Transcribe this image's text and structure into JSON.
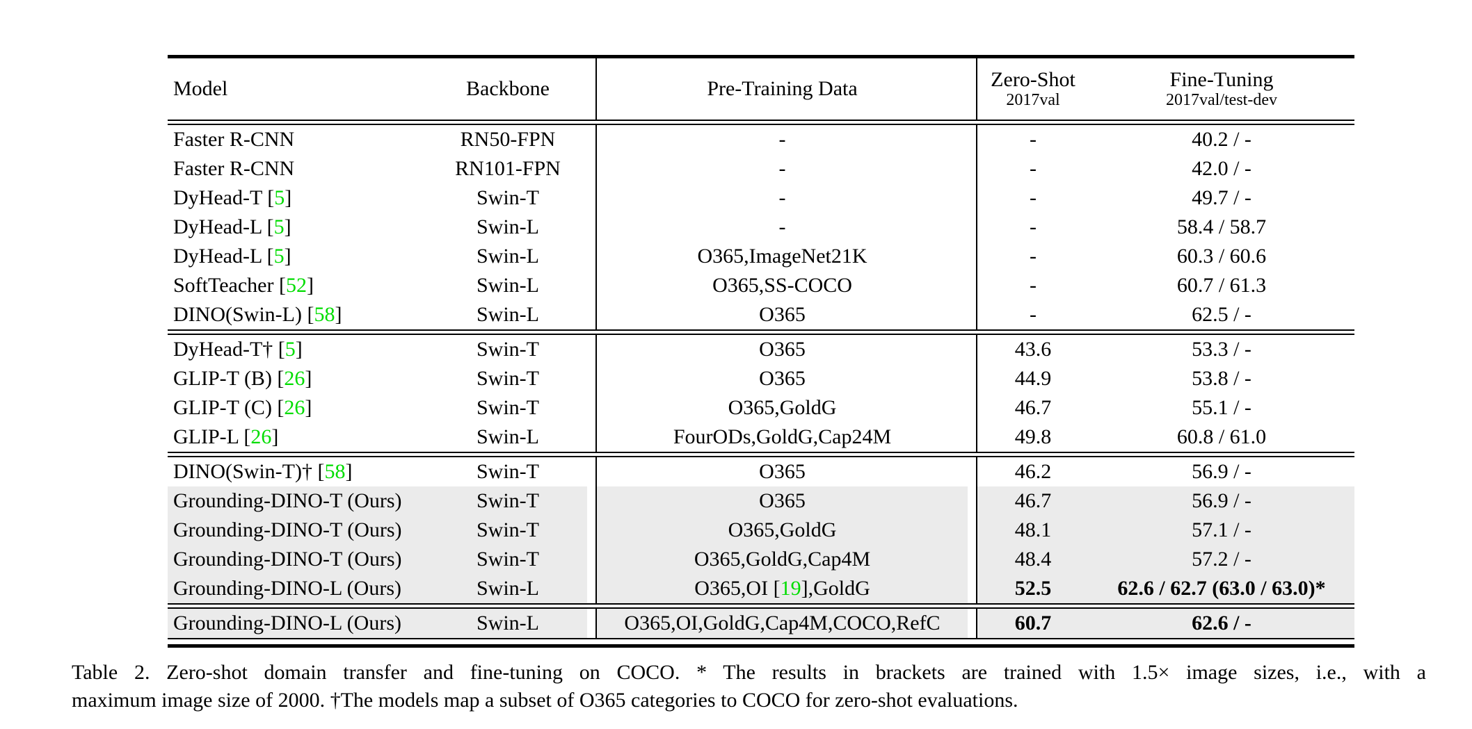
{
  "colors": {
    "citation_green": "#00dd00",
    "row_gray": "#ebebeb",
    "rule_black": "#000000"
  },
  "table": {
    "headers": {
      "model": "Model",
      "backbone": "Backbone",
      "pretrain": "Pre-Training Data",
      "zeroshot_title": "Zero-Shot",
      "zeroshot_sub": "2017val",
      "finetune_title": "Fine-Tuning",
      "finetune_sub": "2017val/test-dev"
    },
    "sections": [
      {
        "rows": [
          {
            "model": [
              {
                "t": "Faster R-CNN"
              }
            ],
            "backbone": "RN50-FPN",
            "pretrain": [
              {
                "t": "-"
              }
            ],
            "zs": "-",
            "ft": "40.2 / -",
            "gray": false,
            "bold": false
          },
          {
            "model": [
              {
                "t": "Faster R-CNN"
              }
            ],
            "backbone": "RN101-FPN",
            "pretrain": [
              {
                "t": "-"
              }
            ],
            "zs": "-",
            "ft": "42.0 / -",
            "gray": false,
            "bold": false
          },
          {
            "model": [
              {
                "t": "DyHead-T ["
              },
              {
                "t": "5",
                "green": true
              },
              {
                "t": "]"
              }
            ],
            "backbone": "Swin-T",
            "pretrain": [
              {
                "t": "-"
              }
            ],
            "zs": "-",
            "ft": "49.7 / -",
            "gray": false,
            "bold": false
          },
          {
            "model": [
              {
                "t": "DyHead-L ["
              },
              {
                "t": "5",
                "green": true
              },
              {
                "t": "]"
              }
            ],
            "backbone": "Swin-L",
            "pretrain": [
              {
                "t": "-"
              }
            ],
            "zs": "-",
            "ft": "58.4 / 58.7",
            "gray": false,
            "bold": false
          },
          {
            "model": [
              {
                "t": "DyHead-L ["
              },
              {
                "t": "5",
                "green": true
              },
              {
                "t": "]"
              }
            ],
            "backbone": "Swin-L",
            "pretrain": [
              {
                "t": "O365,ImageNet21K"
              }
            ],
            "zs": "-",
            "ft": "60.3 / 60.6",
            "gray": false,
            "bold": false
          },
          {
            "model": [
              {
                "t": "SoftTeacher ["
              },
              {
                "t": "52",
                "green": true
              },
              {
                "t": "]"
              }
            ],
            "backbone": "Swin-L",
            "pretrain": [
              {
                "t": "O365,SS-COCO"
              }
            ],
            "zs": "-",
            "ft": "60.7 / 61.3",
            "gray": false,
            "bold": false
          },
          {
            "model": [
              {
                "t": "DINO(Swin-L) ["
              },
              {
                "t": "58",
                "green": true
              },
              {
                "t": "]"
              }
            ],
            "backbone": "Swin-L",
            "pretrain": [
              {
                "t": "O365"
              }
            ],
            "zs": "-",
            "ft": "62.5 / -",
            "gray": false,
            "bold": false
          }
        ]
      },
      {
        "rows": [
          {
            "model": [
              {
                "t": "DyHead-T† ["
              },
              {
                "t": "5",
                "green": true
              },
              {
                "t": "]"
              }
            ],
            "backbone": "Swin-T",
            "pretrain": [
              {
                "t": "O365"
              }
            ],
            "zs": "43.6",
            "ft": "53.3 / -",
            "gray": false,
            "bold": false
          },
          {
            "model": [
              {
                "t": "GLIP-T (B) ["
              },
              {
                "t": "26",
                "green": true
              },
              {
                "t": "]"
              }
            ],
            "backbone": "Swin-T",
            "pretrain": [
              {
                "t": "O365"
              }
            ],
            "zs": "44.9",
            "ft": "53.8 / -",
            "gray": false,
            "bold": false
          },
          {
            "model": [
              {
                "t": "GLIP-T (C) ["
              },
              {
                "t": "26",
                "green": true
              },
              {
                "t": "]"
              }
            ],
            "backbone": "Swin-T",
            "pretrain": [
              {
                "t": "O365,GoldG"
              }
            ],
            "zs": "46.7",
            "ft": "55.1 / -",
            "gray": false,
            "bold": false
          },
          {
            "model": [
              {
                "t": "GLIP-L ["
              },
              {
                "t": "26",
                "green": true
              },
              {
                "t": "]"
              }
            ],
            "backbone": "Swin-L",
            "pretrain": [
              {
                "t": "FourODs,GoldG,Cap24M"
              }
            ],
            "zs": "49.8",
            "ft": "60.8 / 61.0",
            "gray": false,
            "bold": false
          }
        ]
      },
      {
        "rows": [
          {
            "model": [
              {
                "t": "DINO(Swin-T)† ["
              },
              {
                "t": "58",
                "green": true
              },
              {
                "t": "]"
              }
            ],
            "backbone": "Swin-T",
            "pretrain": [
              {
                "t": "O365"
              }
            ],
            "zs": "46.2",
            "ft": "56.9 / -",
            "gray": false,
            "bold": false
          },
          {
            "model": [
              {
                "t": "Grounding-DINO-T (Ours)"
              }
            ],
            "backbone": "Swin-T",
            "pretrain": [
              {
                "t": "O365"
              }
            ],
            "zs": "46.7",
            "ft": "56.9 / -",
            "gray": true,
            "bold": false
          },
          {
            "model": [
              {
                "t": "Grounding-DINO-T (Ours)"
              }
            ],
            "backbone": "Swin-T",
            "pretrain": [
              {
                "t": "O365,GoldG"
              }
            ],
            "zs": "48.1",
            "ft": "57.1 / -",
            "gray": true,
            "bold": false
          },
          {
            "model": [
              {
                "t": "Grounding-DINO-T (Ours)"
              }
            ],
            "backbone": "Swin-T",
            "pretrain": [
              {
                "t": "O365,GoldG,Cap4M"
              }
            ],
            "zs": "48.4",
            "ft": "57.2 / -",
            "gray": true,
            "bold": false
          },
          {
            "model": [
              {
                "t": "Grounding-DINO-L (Ours)"
              }
            ],
            "backbone": "Swin-L",
            "pretrain": [
              {
                "t": "O365,OI ["
              },
              {
                "t": "19",
                "green": true
              },
              {
                "t": "],GoldG"
              }
            ],
            "zs": "52.5",
            "ft": "62.6 / 62.7 (63.0 / 63.0)*",
            "gray": true,
            "bold": true
          }
        ]
      },
      {
        "rows": [
          {
            "model": [
              {
                "t": "Grounding-DINO-L (Ours)"
              }
            ],
            "backbone": "Swin-L",
            "pretrain": [
              {
                "t": "O365,OI,GoldG,Cap4M,COCO,RefC"
              }
            ],
            "zs": "60.7",
            "ft": "62.6 / -",
            "gray": true,
            "bold": true
          }
        ]
      }
    ]
  },
  "caption": {
    "line1": "Table 2. Zero-shot domain transfer and fine-tuning on COCO. * The results in brackets are trained with 1.5× image sizes, i.e., with a",
    "line2": "maximum image size of 2000. †The models map a subset of O365 categories to COCO for zero-shot evaluations."
  }
}
